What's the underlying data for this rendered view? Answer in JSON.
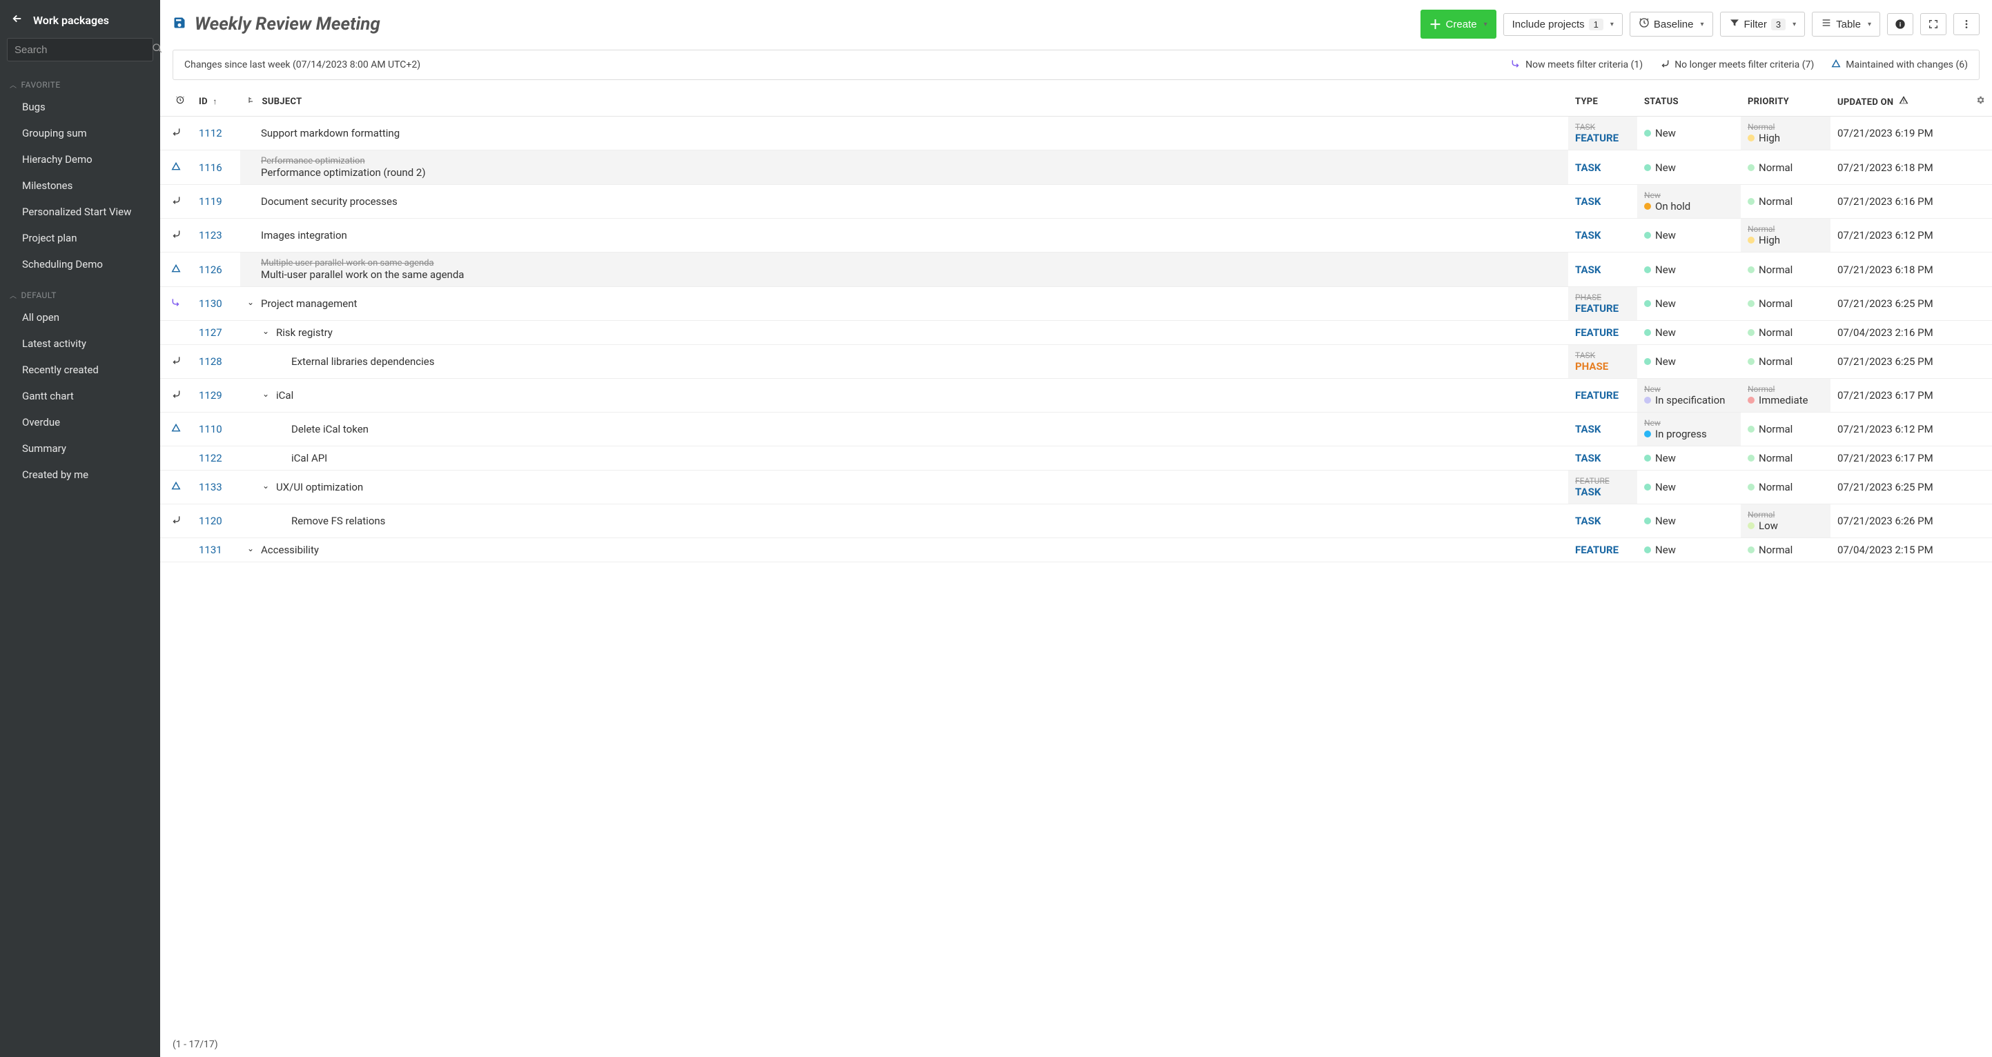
{
  "sidebar": {
    "title": "Work packages",
    "search_placeholder": "Search",
    "sections": [
      {
        "label": "FAVORITE",
        "items": [
          "Bugs",
          "Grouping sum",
          "Hierachy Demo",
          "Milestones",
          "Personalized Start View",
          "Project plan",
          "Scheduling Demo"
        ]
      },
      {
        "label": "DEFAULT",
        "items": [
          "All open",
          "Latest activity",
          "Recently created",
          "Gantt chart",
          "Overdue",
          "Summary",
          "Created by me"
        ]
      }
    ]
  },
  "header": {
    "title": "Weekly Review Meeting",
    "create_label": "Create",
    "include_projects_label": "Include projects",
    "include_projects_count": "1",
    "baseline_label": "Baseline",
    "filter_label": "Filter",
    "filter_count": "3",
    "view_label": "Table"
  },
  "banner": {
    "changes_text": "Changes since last week (07/14/2023 8:00 AM UTC+2)",
    "now_meets": "Now meets filter criteria (1)",
    "no_longer": "No longer meets filter criteria (7)",
    "maintained": "Maintained with changes (6)"
  },
  "columns": {
    "id": "ID",
    "subject": "SUBJECT",
    "type": "TYPE",
    "status": "STATUS",
    "priority": "PRIORITY",
    "updated": "UPDATED ON"
  },
  "colors": {
    "status_new": "#8fe6c6",
    "status_onhold": "#f5a623",
    "status_inspec": "#c7c5f5",
    "status_inprogress": "#29b6f6",
    "prio_normal": "#b9efc8",
    "prio_high": "#ffe08a",
    "prio_immediate": "#f5a3a3",
    "prio_low": "#d9f2b8",
    "link": "#1a67a3",
    "changed_bg": "#f4f4f4"
  },
  "rows": [
    {
      "marker": "out",
      "id": "1112",
      "indent": 0,
      "expander": "",
      "old_subject": "",
      "subject": "Support markdown formatting",
      "type_old": "TASK",
      "type": "FEATURE",
      "type_class": "type-feature",
      "type_changed": true,
      "status_old": "",
      "status": "New",
      "status_color": "status_new",
      "status_changed": false,
      "prio_old": "Normal",
      "prio": "High",
      "prio_color": "prio_high",
      "prio_changed": true,
      "updated": "07/21/2023 6:19 PM"
    },
    {
      "marker": "tri",
      "id": "1116",
      "indent": 0,
      "expander": "",
      "old_subject": "Performance optimization",
      "subject": "Performance optimization (round 2)",
      "type_old": "",
      "type": "TASK",
      "type_class": "type-task",
      "type_changed": false,
      "status_old": "",
      "status": "New",
      "status_color": "status_new",
      "status_changed": false,
      "prio_old": "",
      "prio": "Normal",
      "prio_color": "prio_normal",
      "prio_changed": false,
      "updated": "07/21/2023 6:18 PM",
      "row_changed": true
    },
    {
      "marker": "out",
      "id": "1119",
      "indent": 0,
      "expander": "",
      "old_subject": "",
      "subject": "Document security processes",
      "type_old": "",
      "type": "TASK",
      "type_class": "type-task",
      "type_changed": false,
      "status_old": "New",
      "status": "On hold",
      "status_color": "status_onhold",
      "status_changed": true,
      "prio_old": "",
      "prio": "Normal",
      "prio_color": "prio_normal",
      "prio_changed": false,
      "updated": "07/21/2023 6:16 PM"
    },
    {
      "marker": "out",
      "id": "1123",
      "indent": 0,
      "expander": "",
      "old_subject": "",
      "subject": "Images integration",
      "type_old": "",
      "type": "TASK",
      "type_class": "type-task",
      "type_changed": false,
      "status_old": "",
      "status": "New",
      "status_color": "status_new",
      "status_changed": false,
      "prio_old": "Normal",
      "prio": "High",
      "prio_color": "prio_high",
      "prio_changed": true,
      "updated": "07/21/2023 6:12 PM"
    },
    {
      "marker": "tri",
      "id": "1126",
      "indent": 0,
      "expander": "",
      "old_subject": "Multiple user parallel work on same agenda",
      "subject": "Multi-user parallel work on the same agenda",
      "type_old": "",
      "type": "TASK",
      "type_class": "type-task",
      "type_changed": false,
      "status_old": "",
      "status": "New",
      "status_color": "status_new",
      "status_changed": false,
      "prio_old": "",
      "prio": "Normal",
      "prio_color": "prio_normal",
      "prio_changed": false,
      "updated": "07/21/2023 6:18 PM",
      "row_changed": true
    },
    {
      "marker": "in",
      "id": "1130",
      "indent": 0,
      "expander": "v",
      "old_subject": "",
      "subject": "Project management",
      "type_old": "PHASE",
      "type": "FEATURE",
      "type_class": "type-feature",
      "type_changed": true,
      "status_old": "",
      "status": "New",
      "status_color": "status_new",
      "status_changed": false,
      "prio_old": "",
      "prio": "Normal",
      "prio_color": "prio_normal",
      "prio_changed": false,
      "updated": "07/21/2023 6:25 PM"
    },
    {
      "marker": "",
      "id": "1127",
      "indent": 1,
      "expander": "v",
      "old_subject": "",
      "subject": "Risk registry",
      "type_old": "",
      "type": "FEATURE",
      "type_class": "type-feature",
      "type_changed": false,
      "status_old": "",
      "status": "New",
      "status_color": "status_new",
      "status_changed": false,
      "prio_old": "",
      "prio": "Normal",
      "prio_color": "prio_normal",
      "prio_changed": false,
      "updated": "07/04/2023 2:16 PM"
    },
    {
      "marker": "out",
      "id": "1128",
      "indent": 2,
      "expander": "",
      "old_subject": "",
      "subject": "External libraries dependencies",
      "type_old": "TASK",
      "type": "PHASE",
      "type_class": "type-phase",
      "type_changed": true,
      "status_old": "",
      "status": "New",
      "status_color": "status_new",
      "status_changed": false,
      "prio_old": "",
      "prio": "Normal",
      "prio_color": "prio_normal",
      "prio_changed": false,
      "updated": "07/21/2023 6:25 PM"
    },
    {
      "marker": "out",
      "id": "1129",
      "indent": 1,
      "expander": "v",
      "old_subject": "",
      "subject": "iCal",
      "type_old": "",
      "type": "FEATURE",
      "type_class": "type-feature",
      "type_changed": false,
      "status_old": "New",
      "status": "In specification",
      "status_color": "status_inspec",
      "status_changed": true,
      "prio_old": "Normal",
      "prio": "Immediate",
      "prio_color": "prio_immediate",
      "prio_changed": true,
      "updated": "07/21/2023 6:17 PM"
    },
    {
      "marker": "tri",
      "id": "1110",
      "indent": 2,
      "expander": "",
      "old_subject": "",
      "subject": "Delete iCal token",
      "type_old": "",
      "type": "TASK",
      "type_class": "type-task",
      "type_changed": false,
      "status_old": "New",
      "status": "In progress",
      "status_color": "status_inprogress",
      "status_changed": true,
      "prio_old": "",
      "prio": "Normal",
      "prio_color": "prio_normal",
      "prio_changed": false,
      "updated": "07/21/2023 6:12 PM"
    },
    {
      "marker": "",
      "id": "1122",
      "indent": 2,
      "expander": "",
      "old_subject": "",
      "subject": "iCal API",
      "type_old": "",
      "type": "TASK",
      "type_class": "type-task",
      "type_changed": false,
      "status_old": "",
      "status": "New",
      "status_color": "status_new",
      "status_changed": false,
      "prio_old": "",
      "prio": "Normal",
      "prio_color": "prio_normal",
      "prio_changed": false,
      "updated": "07/21/2023 6:17 PM"
    },
    {
      "marker": "tri",
      "id": "1133",
      "indent": 1,
      "expander": "v",
      "old_subject": "",
      "subject": "UX/UI optimization",
      "type_old": "FEATURE",
      "type": "TASK",
      "type_class": "type-task",
      "type_changed": true,
      "status_old": "",
      "status": "New",
      "status_color": "status_new",
      "status_changed": false,
      "prio_old": "",
      "prio": "Normal",
      "prio_color": "prio_normal",
      "prio_changed": false,
      "updated": "07/21/2023 6:25 PM"
    },
    {
      "marker": "out",
      "id": "1120",
      "indent": 2,
      "expander": "",
      "old_subject": "",
      "subject": "Remove FS relations",
      "type_old": "",
      "type": "TASK",
      "type_class": "type-task",
      "type_changed": false,
      "status_old": "",
      "status": "New",
      "status_color": "status_new",
      "status_changed": false,
      "prio_old": "Normal",
      "prio": "Low",
      "prio_color": "prio_low",
      "prio_changed": true,
      "updated": "07/21/2023 6:26 PM"
    },
    {
      "marker": "",
      "id": "1131",
      "indent": 0,
      "expander": "v",
      "old_subject": "",
      "subject": "Accessibility",
      "type_old": "",
      "type": "FEATURE",
      "type_class": "type-feature",
      "type_changed": false,
      "status_old": "",
      "status": "New",
      "status_color": "status_new",
      "status_changed": false,
      "prio_old": "",
      "prio": "Normal",
      "prio_color": "prio_normal",
      "prio_changed": false,
      "updated": "07/04/2023 2:15 PM"
    }
  ],
  "footer": {
    "range": "(1 - 17/17)"
  }
}
